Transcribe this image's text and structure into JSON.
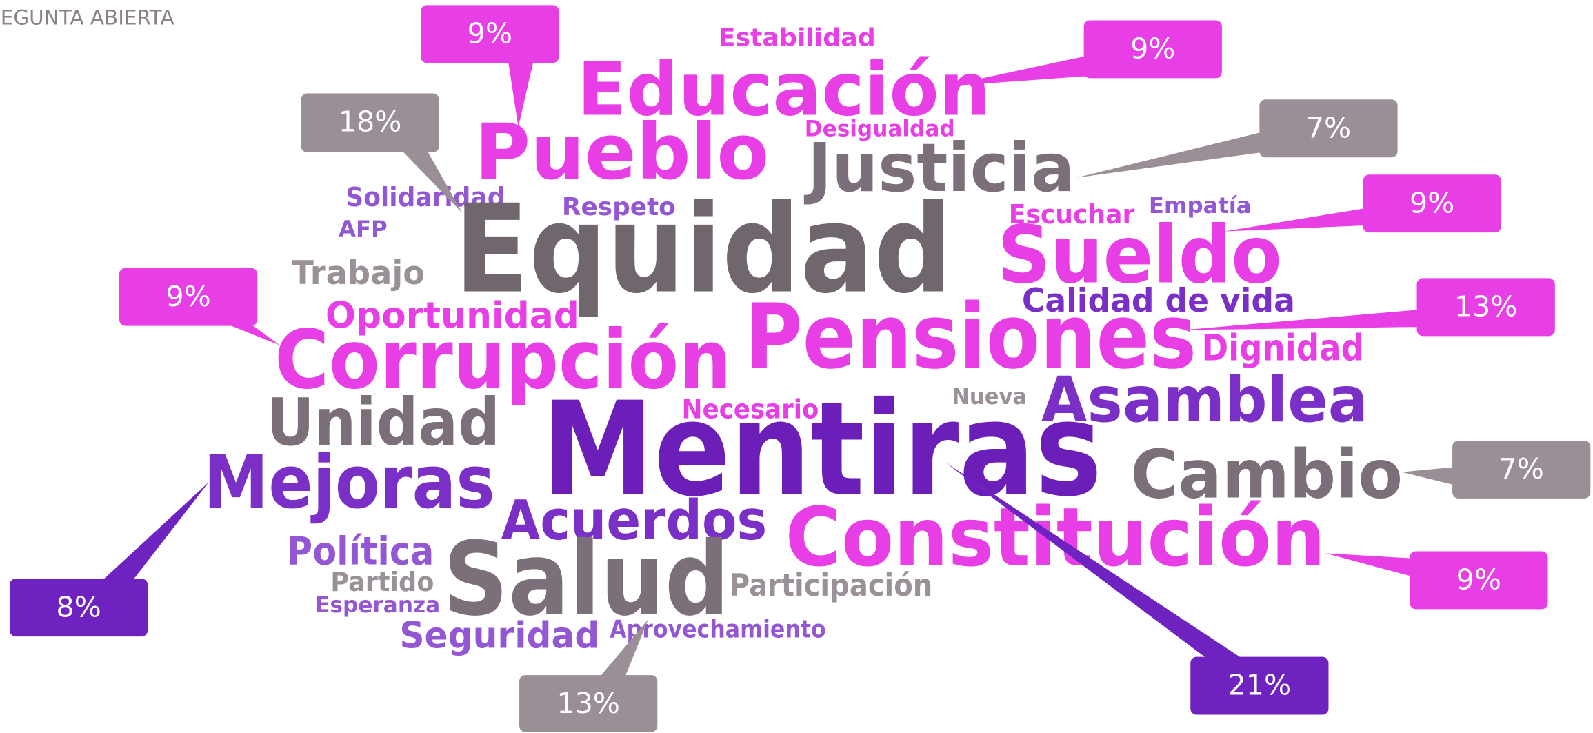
{
  "title": "EGUNTA ABIERTA",
  "words": [
    "Estabilidad",
    "Educación",
    "Desigualdad",
    "Pueblo",
    "Justicia",
    "Solidaridad",
    "Respeto",
    "AFP",
    "Equidad",
    "Escuchar",
    "Empatía",
    "Sueldo",
    "Trabajo",
    "Calidad de vida",
    "Oportunidad",
    "Pensiones",
    "Corrupción",
    "Dignidad",
    "Nueva",
    "Asamblea",
    "Unidad",
    "Necesario",
    "Mentiras",
    "Mejoras",
    "Cambio",
    "Acuerdos",
    "Constitución",
    "Política",
    "Salud",
    "Partido",
    "Participación",
    "Esperanza",
    "Seguridad",
    "Aprovechamiento"
  ],
  "callouts": [
    "9%",
    "9%",
    "18%",
    "7%",
    "9%",
    "13%",
    "9%",
    "7%",
    "9%",
    "8%",
    "21%",
    "13%"
  ]
}
